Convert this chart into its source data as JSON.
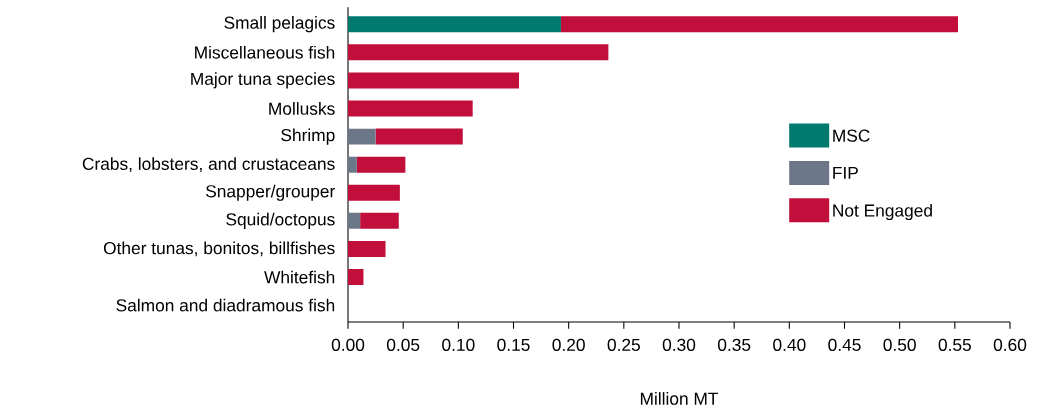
{
  "chart_data": {
    "type": "bar",
    "orientation": "horizontal",
    "stacked": true,
    "xlabel": "Million MT",
    "categories": [
      "Small pelagics",
      "Miscellaneous fish",
      "Major tuna species",
      "Mollusks",
      "Shrimp",
      "Crabs, lobsters, and crustaceans",
      "Snapper/grouper",
      "Squid/octopus",
      "Other tunas, bonitos, billfishes",
      "Whitefish",
      "Salmon and diadramous fish"
    ],
    "series": [
      {
        "name": "MSC",
        "color": "#00796f",
        "values": [
          0.193,
          0,
          0,
          0,
          0,
          0,
          0,
          0,
          0,
          0,
          0
        ]
      },
      {
        "name": "FIP",
        "color": "#6c7689",
        "values": [
          0,
          0,
          0,
          0,
          0.025,
          0.008,
          null,
          0.011,
          0,
          null,
          null
        ]
      },
      {
        "name": "Not Engaged",
        "color": "#c20e3a",
        "values": [
          0.36,
          0.236,
          0.155,
          0.113,
          0.079,
          0.044,
          0.047,
          0.035,
          0.034,
          0.014,
          0
        ]
      }
    ],
    "xlim": [
      0,
      0.6
    ],
    "xticks": [
      {
        "value": 0,
        "label": "0.00"
      },
      {
        "value": 0.05,
        "label": "0.05"
      },
      {
        "value": 0.1,
        "label": "0.10"
      },
      {
        "value": 0.15,
        "label": "0.15"
      },
      {
        "value": 0.2,
        "label": "0.20"
      },
      {
        "value": 0.25,
        "label": "0.25"
      },
      {
        "value": 0.3,
        "label": "0.30"
      },
      {
        "value": 0.35,
        "label": "0.35"
      },
      {
        "value": 0.4,
        "label": "0.40"
      },
      {
        "value": 0.45,
        "label": "0.45"
      },
      {
        "value": 0.5,
        "label": "0.50"
      },
      {
        "value": 0.55,
        "label": "0.55"
      },
      {
        "value": 0.6,
        "label": "0.60"
      }
    ],
    "grid": false,
    "legend": "right"
  }
}
